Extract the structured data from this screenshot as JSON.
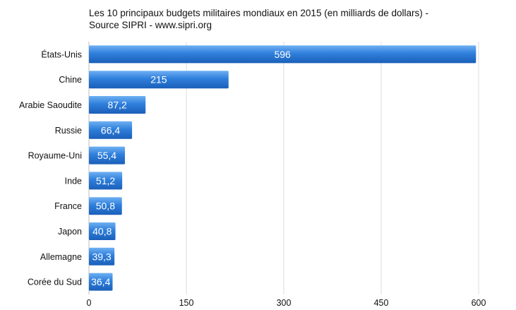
{
  "chart_data": {
    "type": "bar",
    "orientation": "horizontal",
    "title_line1": "Les 10 principaux budgets militaires mondiaux en 2015 (en milliards de dollars) -",
    "title_line2": "Source SIPRI - www.sipri.org",
    "categories": [
      "États-Unis",
      "Chine",
      "Arabie Saoudite",
      "Russie",
      "Royaume-Uni",
      "Inde",
      "France",
      "Japon",
      "Allemagne",
      "Corée du Sud"
    ],
    "values": [
      596,
      215,
      87.2,
      66.4,
      55.4,
      51.2,
      50.8,
      40.8,
      39.3,
      36.4
    ],
    "value_labels": [
      "596",
      "215",
      "87,2",
      "66,4",
      "55,4",
      "51,2",
      "50,8",
      "40,8",
      "39,3",
      "36,4"
    ],
    "xlim": [
      0,
      600
    ],
    "xticks": [
      0,
      150,
      300,
      450,
      600
    ],
    "xtick_labels": [
      "0",
      "150",
      "300",
      "450",
      "600"
    ],
    "grid": true,
    "bar_color": "#2b78d6"
  }
}
